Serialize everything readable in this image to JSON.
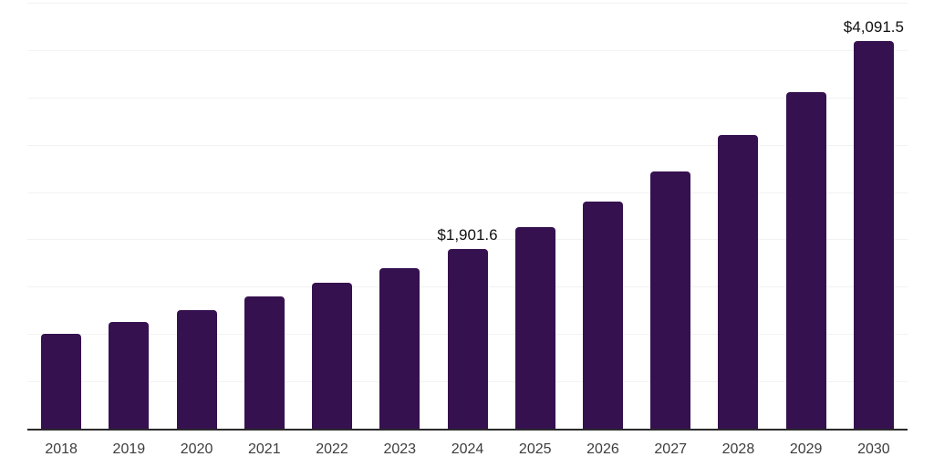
{
  "chart_data": {
    "type": "bar",
    "title": "",
    "xlabel": "",
    "ylabel": "",
    "categories": [
      "2018",
      "2019",
      "2020",
      "2021",
      "2022",
      "2023",
      "2024",
      "2025",
      "2026",
      "2027",
      "2028",
      "2029",
      "2030"
    ],
    "values": [
      1000,
      1125,
      1250,
      1395,
      1540,
      1700,
      1901.6,
      2125,
      2400,
      2720,
      3100,
      3560,
      4091.5
    ],
    "value_labels": {
      "2024": "$1,901.6",
      "2030": "$4,091.5"
    },
    "ylim": [
      0,
      4500
    ],
    "y_grid_step": 500,
    "grid": true,
    "y_tick_labels_visible": false,
    "legend": "none",
    "colors": {
      "bar": "#36114f",
      "axis_line": "#2a2a2a",
      "gridline": "#f2f2f2",
      "value_label": "#111111",
      "tick_label": "#3d3d3d",
      "background": "#ffffff"
    }
  }
}
